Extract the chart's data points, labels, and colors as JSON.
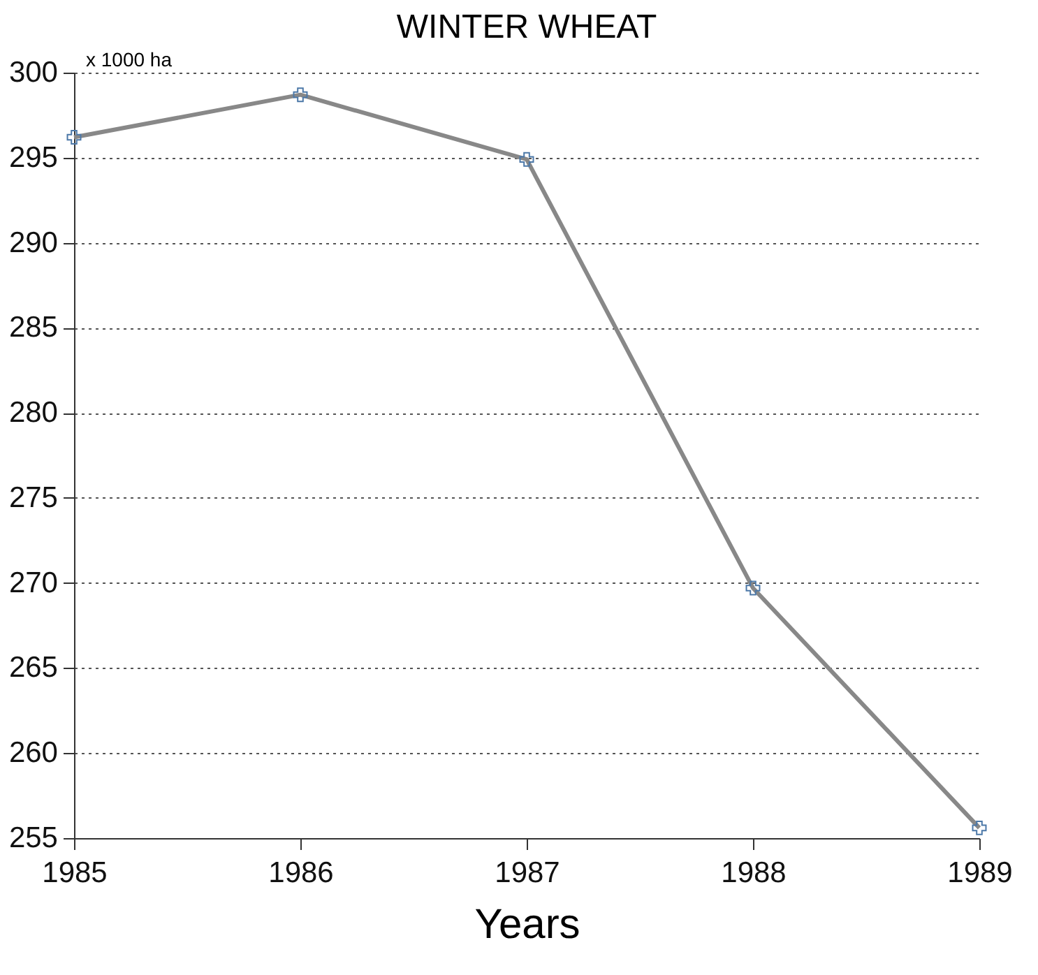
{
  "chart_data": {
    "type": "line",
    "title": "WINTER WHEAT",
    "xlabel": "Years",
    "ylabel": "x 1000 ha",
    "categories": [
      "1985",
      "1986",
      "1987",
      "1988",
      "1989"
    ],
    "series": [
      {
        "color": "#888888",
        "values": [
          296.2,
          298.7,
          294.9,
          269.7,
          255.6
        ]
      }
    ],
    "ylim": [
      255,
      300
    ],
    "yticks": [
      255,
      260,
      265,
      270,
      275,
      280,
      285,
      290,
      295,
      300
    ],
    "grid": "y",
    "marker": "cross",
    "legend": false
  }
}
